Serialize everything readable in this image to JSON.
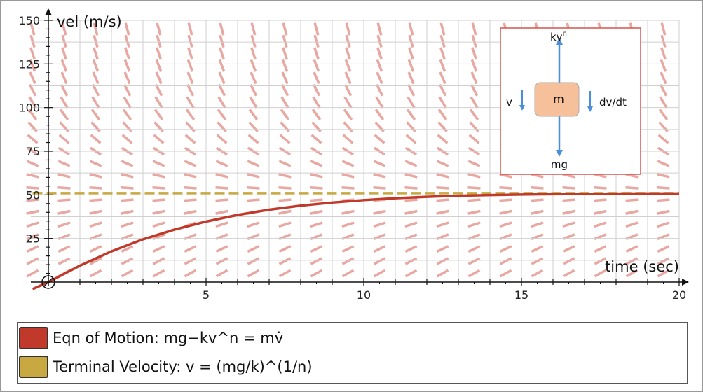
{
  "chart_data": {
    "type": "line",
    "xlabel": "time (sec)",
    "ylabel": "vel (m/s)",
    "xlim": [
      0,
      20
    ],
    "ylim": [
      0,
      150
    ],
    "x_ticks": [
      5,
      10,
      15,
      20
    ],
    "y_ticks": [
      25,
      50,
      75,
      100,
      125,
      150
    ],
    "x_minor_step": 1,
    "y_minor_step": 5,
    "grid": true,
    "slope_field": true,
    "series": [
      {
        "name": "Eqn of Motion: mg−kv^n = mv̇",
        "color": "#c0392b",
        "x": [
          -0.5,
          0,
          1,
          2,
          3,
          4,
          5,
          6,
          7,
          8,
          9,
          10,
          11,
          12,
          13,
          14,
          15,
          16,
          17,
          18,
          19,
          20
        ],
        "y": [
          -4,
          0,
          9.4,
          17.6,
          24.5,
          30.1,
          34.7,
          38.5,
          41.5,
          43.8,
          45.6,
          47.0,
          48.1,
          48.9,
          49.5,
          49.9,
          50.2,
          50.4,
          50.6,
          50.7,
          50.8,
          50.8
        ]
      },
      {
        "name": "Terminal Velocity: v = (mg/k)^(1/n)",
        "color": "#c8a840",
        "x": [
          -0.5,
          20
        ],
        "y": [
          51,
          51
        ]
      }
    ],
    "initial_point": [
      0,
      0
    ]
  },
  "legend": {
    "items": [
      {
        "label": "Eqn of Motion: mg−kv^n = mv̇",
        "color": "#c0392b"
      },
      {
        "label": "Terminal Velocity: v = (mg/k)^(1/n)",
        "color": "#c8a840"
      }
    ]
  },
  "diagram": {
    "mass_label": "m",
    "top_label": "kv",
    "top_label_sup": "n",
    "bottom_label": "mg",
    "left_label": "v",
    "right_label": "dv/dt"
  },
  "colors": {
    "curve": "#c0392b",
    "terminal": "#c8a840",
    "slope_field": "#e8a7a0",
    "grid": "#cfcfcf",
    "arrow": "#4a90d9",
    "mass_fill": "#f5c09a",
    "diagram_border": "#d9534f"
  }
}
